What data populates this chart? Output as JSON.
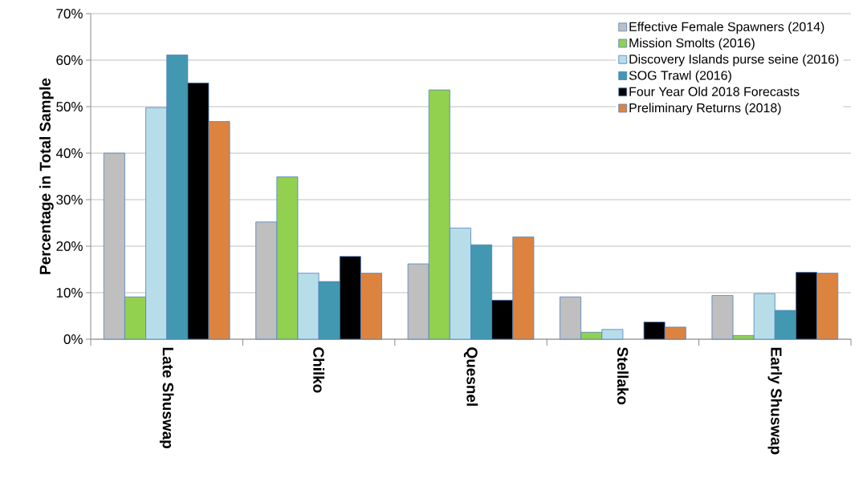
{
  "chart_data": {
    "type": "bar",
    "ylabel": "Percentage in Total Sample",
    "categories": [
      "Late Shuswap",
      "Chilko",
      "Quesnel",
      "Stellako",
      "Early Shuswap"
    ],
    "series": [
      {
        "name": "Effective Female Spawners (2014)",
        "color": "#bfbfbf",
        "values": [
          40,
          25.2,
          16.2,
          9.1,
          9.4
        ]
      },
      {
        "name": "Mission Smolts (2016)",
        "color": "#92d050",
        "values": [
          9.1,
          34.9,
          53.6,
          1.5,
          0.8
        ]
      },
      {
        "name": "Discovery Islands purse seine (2016)",
        "color": "#b7dde8",
        "values": [
          49.8,
          14.2,
          23.9,
          2.1,
          9.8
        ]
      },
      {
        "name": "SOG Trawl (2016)",
        "color": "#4198b0",
        "values": [
          61.1,
          12.4,
          20.3,
          null,
          6.2
        ]
      },
      {
        "name": "Four Year Old 2018 Forecasts",
        "color": "#000000",
        "values": [
          55.1,
          17.8,
          8.4,
          3.7,
          14.4
        ]
      },
      {
        "name": "Preliminary Returns (2018)",
        "color": "#dd8340",
        "values": [
          46.8,
          14.2,
          22.0,
          2.6,
          14.2
        ]
      }
    ],
    "ylim": [
      0,
      70
    ],
    "yticks": [
      {
        "value": 0,
        "label": "0%"
      },
      {
        "value": 10,
        "label": "10%"
      },
      {
        "value": 20,
        "label": "20%"
      },
      {
        "value": 30,
        "label": "30%"
      },
      {
        "value": 40,
        "label": "40%"
      },
      {
        "value": 50,
        "label": "50%"
      },
      {
        "value": 60,
        "label": "60%"
      },
      {
        "value": 70,
        "label": "70%"
      }
    ],
    "grid": "y",
    "legend": "top right"
  }
}
